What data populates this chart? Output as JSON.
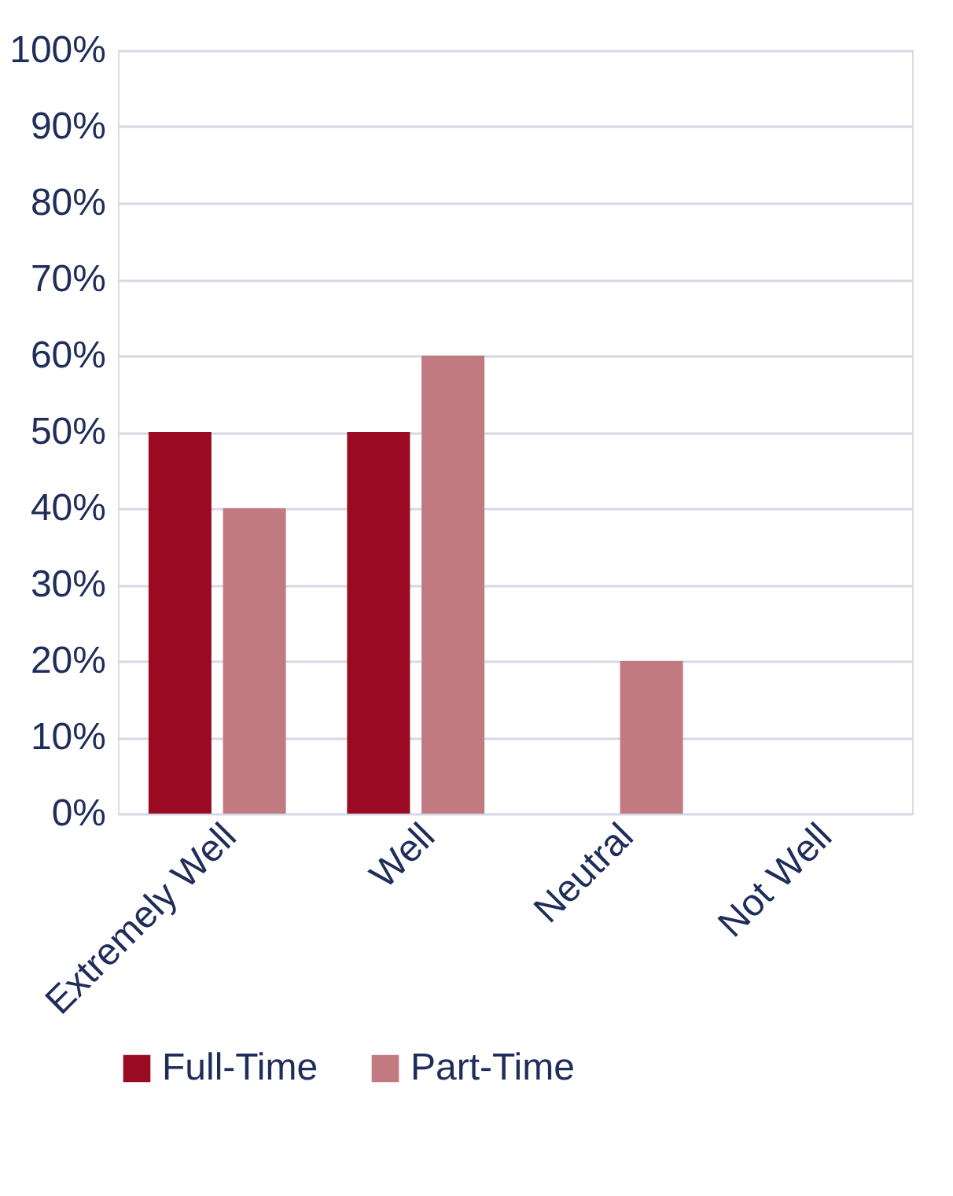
{
  "chart_data": {
    "type": "bar",
    "categories": [
      "Extremely Well",
      "Well",
      "Neutral",
      "Not Well"
    ],
    "series": [
      {
        "name": "Full-Time",
        "color": "#9b0a23",
        "values": [
          50,
          50,
          0,
          0
        ]
      },
      {
        "name": "Part-Time",
        "color": "#c07a80",
        "values": [
          40,
          60,
          20,
          0
        ]
      }
    ],
    "ylim": [
      0,
      100
    ],
    "yticks": [
      {
        "value": 0,
        "label": "0%"
      },
      {
        "value": 10,
        "label": "10%"
      },
      {
        "value": 20,
        "label": "20%"
      },
      {
        "value": 30,
        "label": "30%"
      },
      {
        "value": 40,
        "label": "40%"
      },
      {
        "value": 50,
        "label": "50%"
      },
      {
        "value": 60,
        "label": "60%"
      },
      {
        "value": 70,
        "label": "70%"
      },
      {
        "value": 80,
        "label": "80%"
      },
      {
        "value": 90,
        "label": "90%"
      },
      {
        "value": 100,
        "label": "100%"
      }
    ],
    "grid": "y",
    "legend": "bottom"
  }
}
